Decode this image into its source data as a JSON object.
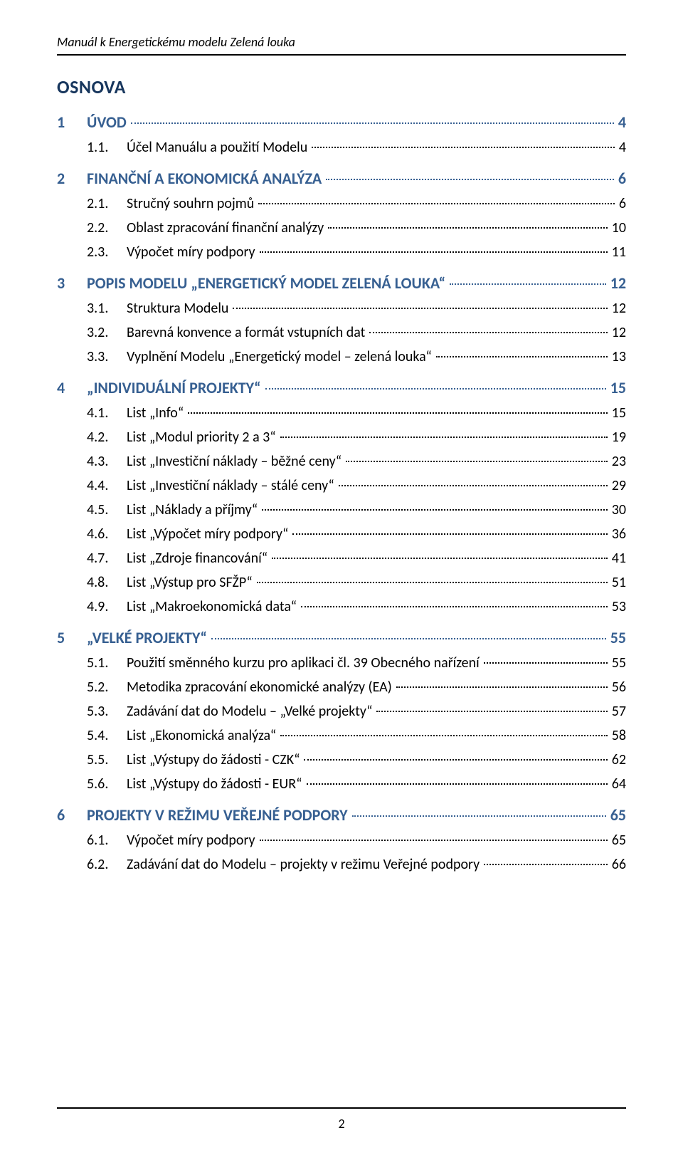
{
  "header": {
    "running_head": "Manuál k Energetickému modelu Zelená louka"
  },
  "osnova_title": "OSNOVA",
  "colors": {
    "heading_blue": "#17365d",
    "toc_blue": "#365f91",
    "text_black": "#000000",
    "page_bg": "#ffffff"
  },
  "typography": {
    "running_head_fontsize": 18,
    "osnova_fontsize": 26,
    "level1_fontsize": 22,
    "level2_fontsize": 20,
    "font_family": "Calibri"
  },
  "toc": [
    {
      "level": 1,
      "index": "1",
      "title": "ÚVOD",
      "page": "4"
    },
    {
      "level": 2,
      "index": "1.1.",
      "title": "Účel Manuálu a použití Modelu",
      "page": "4"
    },
    {
      "level": 1,
      "index": "2",
      "title": "FINANČNÍ A EKONOMICKÁ ANALÝZA",
      "page": "6"
    },
    {
      "level": 2,
      "index": "2.1.",
      "title": "Stručný souhrn pojmů",
      "page": "6"
    },
    {
      "level": 2,
      "index": "2.2.",
      "title": "Oblast zpracování finanční analýzy",
      "page": "10"
    },
    {
      "level": 2,
      "index": "2.3.",
      "title": "Výpočet míry podpory",
      "page": "11"
    },
    {
      "level": 1,
      "index": "3",
      "title": "POPIS MODELU „ENERGETICKÝ MODEL ZELENÁ LOUKA“",
      "page": "12"
    },
    {
      "level": 2,
      "index": "3.1.",
      "title": "Struktura Modelu",
      "page": "12"
    },
    {
      "level": 2,
      "index": "3.2.",
      "title": "Barevná konvence a formát vstupních dat",
      "page": "12"
    },
    {
      "level": 2,
      "index": "3.3.",
      "title": "Vyplnění Modelu „Energetický model – zelená louka“",
      "page": "13"
    },
    {
      "level": 1,
      "index": "4",
      "title": "„INDIVIDUÁLNÍ PROJEKTY“",
      "page": "15"
    },
    {
      "level": 2,
      "index": "4.1.",
      "title": "List „Info“",
      "page": "15"
    },
    {
      "level": 2,
      "index": "4.2.",
      "title": "List „Modul priority 2 a 3“",
      "page": "19"
    },
    {
      "level": 2,
      "index": "4.3.",
      "title": "List „Investiční náklady – běžné ceny“",
      "page": "23"
    },
    {
      "level": 2,
      "index": "4.4.",
      "title": "List „Investiční náklady – stálé ceny“",
      "page": "29"
    },
    {
      "level": 2,
      "index": "4.5.",
      "title": "List „Náklady a příjmy“",
      "page": "30"
    },
    {
      "level": 2,
      "index": "4.6.",
      "title": "List „Výpočet míry podpory“",
      "page": "36"
    },
    {
      "level": 2,
      "index": "4.7.",
      "title": "List „Zdroje financování“",
      "page": "41"
    },
    {
      "level": 2,
      "index": "4.8.",
      "title": "List „Výstup pro SFŽP“",
      "page": "51"
    },
    {
      "level": 2,
      "index": "4.9.",
      "title": "List „Makroekonomická data“",
      "page": "53"
    },
    {
      "level": 1,
      "index": "5",
      "title": "„VELKÉ PROJEKTY“",
      "page": "55"
    },
    {
      "level": 2,
      "index": "5.1.",
      "title": "Použití směnného kurzu pro aplikaci čl. 39 Obecného nařízení",
      "page": "55"
    },
    {
      "level": 2,
      "index": "5.2.",
      "title": "Metodika zpracování ekonomické analýzy (EA)",
      "page": "56"
    },
    {
      "level": 2,
      "index": "5.3.",
      "title": "Zadávání dat do Modelu – „Velké projekty“",
      "page": "57"
    },
    {
      "level": 2,
      "index": "5.4.",
      "title": "List „Ekonomická analýza“",
      "page": "58"
    },
    {
      "level": 2,
      "index": "5.5.",
      "title": "List „Výstupy do žádosti - CZK“",
      "page": "62"
    },
    {
      "level": 2,
      "index": "5.6.",
      "title": "List „Výstupy do žádosti - EUR“",
      "page": "64"
    },
    {
      "level": 1,
      "index": "6",
      "title": "PROJEKTY V REŽIMU VEŘEJNÉ PODPORY",
      "page": "65"
    },
    {
      "level": 2,
      "index": "6.1.",
      "title": "Výpočet míry podpory",
      "page": "65"
    },
    {
      "level": 2,
      "index": "6.2.",
      "title": "Zadávání dat do Modelu – projekty v režimu Veřejné podpory",
      "page": "66"
    }
  ],
  "footer": {
    "page_number": "2"
  }
}
